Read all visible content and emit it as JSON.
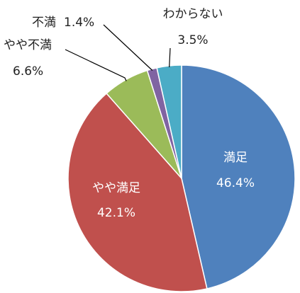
{
  "chart_data": {
    "type": "pie",
    "categories": [
      "満足",
      "やや満足",
      "やや不満",
      "不満",
      "わからない"
    ],
    "values": [
      46.4,
      42.1,
      6.6,
      1.4,
      3.5
    ],
    "value_labels": [
      "46.4%",
      "42.1%",
      "6.6%",
      "1.4%",
      "3.5%"
    ],
    "colors": [
      "#4f81bd",
      "#c0504d",
      "#9bbb59",
      "#8064a2",
      "#4bacc6"
    ],
    "start": "12 o'clock",
    "direction": "clockwise",
    "legend": "none"
  }
}
